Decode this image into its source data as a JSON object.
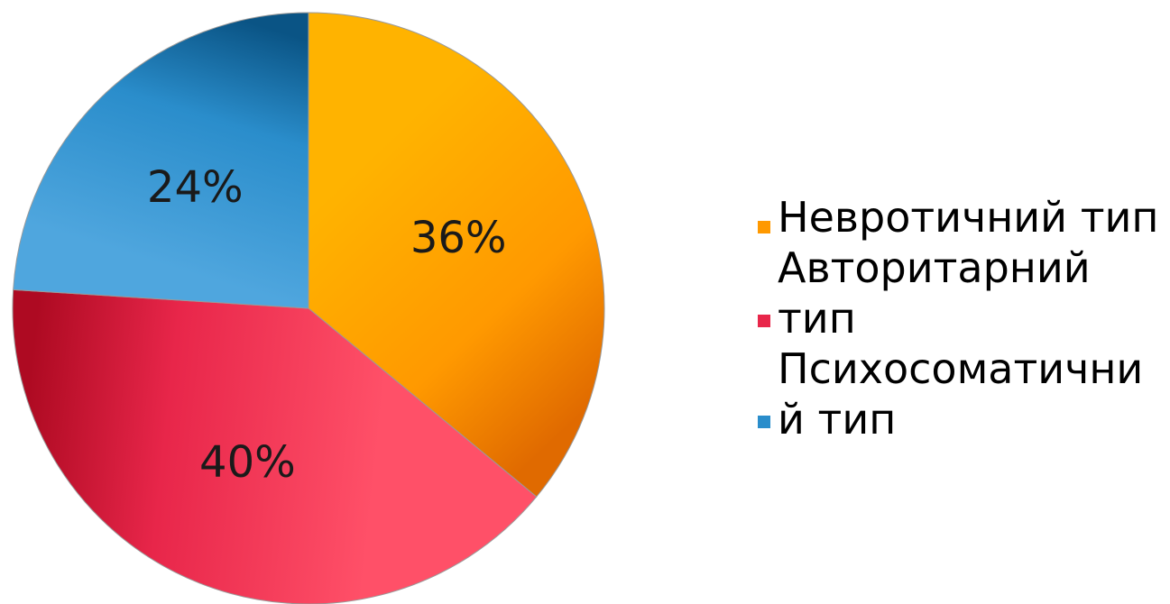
{
  "chart_data": {
    "type": "pie",
    "title": "",
    "legend_position": "right",
    "slices": [
      {
        "name": "Невротичний тип",
        "value": 36,
        "label": "36%",
        "legend_lines": [
          "Невротичний тип"
        ],
        "color": "#FF9900",
        "color_light": "#FFB300",
        "color_dark": "#E06A00"
      },
      {
        "name": "Авторитарний тип",
        "value": 40,
        "label": "40%",
        "legend_lines": [
          "Авторитарний",
          "тип"
        ],
        "color": "#E8264A",
        "color_light": "#FF5068",
        "color_dark": "#AE0A22"
      },
      {
        "name": "Психосоматичний тип",
        "value": 24,
        "label": "24%",
        "legend_lines": [
          "Психосоматични",
          "й тип"
        ],
        "color": "#2A8DCB",
        "color_light": "#4FA6DE",
        "color_dark": "#0A5485"
      }
    ]
  }
}
